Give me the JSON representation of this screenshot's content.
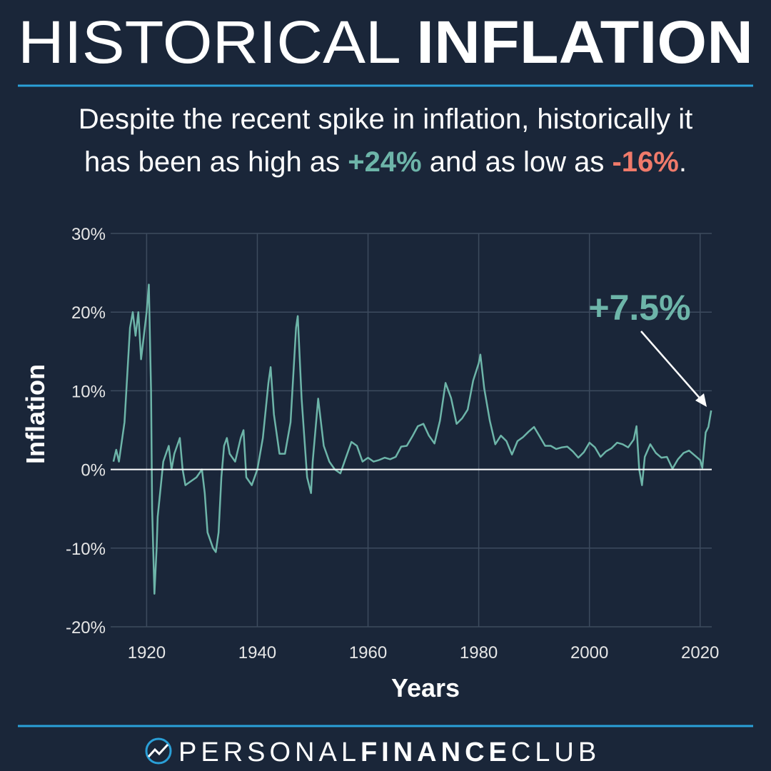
{
  "title": [
    "HISTORICAL",
    "INFLATION"
  ],
  "subtitle": [
    [
      "Despite the recent spike in inflation, historically it"
    ],
    [
      "has been as high as ",
      "+24%",
      " and as low as ",
      "-16%",
      "."
    ]
  ],
  "footer": [
    "PERSONAL",
    "FINANCE",
    "CLUB"
  ],
  "chart_data": {
    "type": "line",
    "color": "#6db5a9",
    "grid": true,
    "x_label": "Years",
    "y_label": "Inflation",
    "annotation": "+7.5%",
    "xlim": [
      1913.5,
      2022.1
    ],
    "ylim": [
      -20,
      30
    ],
    "xticks": [
      1920,
      1940,
      1960,
      1980,
      2000,
      2020
    ],
    "yticks": [
      {
        "value": 30,
        "label": "30%"
      },
      {
        "value": 20,
        "label": "20%"
      },
      {
        "value": 10,
        "label": "10%"
      },
      {
        "value": 0,
        "label": "0%"
      },
      {
        "value": -10,
        "label": "-10%"
      },
      {
        "value": -20,
        "label": "-20%"
      }
    ],
    "x": [
      1914,
      1914.5,
      1915,
      1916,
      1917,
      1917.5,
      1918,
      1918.5,
      1919,
      1919.5,
      1920,
      1920.4,
      1920.8,
      1921,
      1921.4,
      1921.8,
      1922,
      1923,
      1924,
      1924.5,
      1925,
      1926,
      1926.5,
      1927,
      1928,
      1929,
      1930,
      1930.5,
      1931,
      1932,
      1932.5,
      1933,
      1933.5,
      1934,
      1934.5,
      1935,
      1936,
      1937,
      1937.5,
      1938,
      1939,
      1940,
      1941,
      1942,
      1942.4,
      1943,
      1944,
      1945,
      1946,
      1947,
      1947.3,
      1948,
      1949,
      1949.7,
      1950,
      1951,
      1952,
      1953,
      1954,
      1955,
      1956,
      1957,
      1958,
      1959,
      1960,
      1961,
      1962,
      1963,
      1964,
      1965,
      1966,
      1967,
      1968,
      1969,
      1970,
      1971,
      1972,
      1973,
      1974,
      1975,
      1976,
      1977,
      1978,
      1979,
      1980,
      1980.3,
      1981,
      1982,
      1983,
      1984,
      1985,
      1986,
      1987,
      1988,
      1989,
      1990,
      1991,
      1992,
      1993,
      1994,
      1995,
      1996,
      1997,
      1998,
      1999,
      2000,
      2001,
      2002,
      2003,
      2004,
      2005,
      2006,
      2007,
      2008,
      2008.5,
      2009,
      2009.5,
      2010,
      2011,
      2012,
      2013,
      2014,
      2015,
      2016,
      2017,
      2018,
      2019,
      2020,
      2020.4,
      2021,
      2021.5,
      2022
    ],
    "values": [
      1,
      2.5,
      1,
      6,
      18,
      20,
      17,
      20,
      14,
      17,
      20,
      23.5,
      10,
      -5,
      -15.8,
      -10,
      -6,
      1,
      3,
      0,
      2,
      4,
      0,
      -2,
      -1.5,
      -1,
      0,
      -3,
      -8,
      -10,
      -10.5,
      -8,
      -1,
      3,
      4,
      2,
      1,
      4,
      5,
      -1,
      -2,
      0,
      4,
      11,
      13,
      7,
      2,
      2,
      6,
      18,
      19.5,
      9,
      -1,
      -3,
      1,
      9,
      3,
      1,
      0,
      -0.5,
      1.5,
      3.5,
      3,
      1,
      1.5,
      1,
      1.2,
      1.5,
      1.3,
      1.6,
      2.9,
      3,
      4.2,
      5.5,
      5.8,
      4.3,
      3.3,
      6.2,
      11,
      9.1,
      5.8,
      6.5,
      7.6,
      11.3,
      13.5,
      14.6,
      10.3,
      6.2,
      3.2,
      4.3,
      3.6,
      1.9,
      3.6,
      4.1,
      4.8,
      5.4,
      4.2,
      3,
      3,
      2.6,
      2.8,
      2.9,
      2.3,
      1.5,
      2.2,
      3.4,
      2.8,
      1.6,
      2.3,
      2.7,
      3.4,
      3.2,
      2.8,
      3.8,
      5.5,
      0,
      -2,
      1.6,
      3.2,
      2.1,
      1.5,
      1.6,
      0.1,
      1.3,
      2.1,
      2.4,
      1.8,
      1.2,
      0.2,
      4.7,
      5.4,
      7.5
    ]
  }
}
